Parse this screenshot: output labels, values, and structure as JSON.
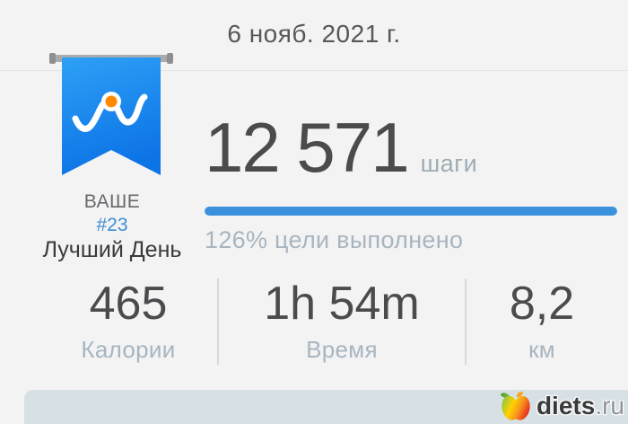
{
  "colors": {
    "bg": "#f3f3f4",
    "header-text": "#57575a",
    "divider": "#e3e3e5",
    "banner-top": "#2da0f6",
    "banner-bottom": "#0d74e6",
    "dot-orange": "#ff8a00",
    "rod-gray": "#ababad",
    "badge-your": "#68686c",
    "badge-rank-blue": "#3c8ed3",
    "badge-title": "#3a3a3d",
    "value-dark": "#4b4b4e",
    "label-muted": "#a8b5bf",
    "steps-unit": "#9fabb3",
    "progress-blue": "#3b91dc",
    "stat-divider": "#d9d9db",
    "card-bg": "#d6e0e5",
    "wm-dark": "#3a3a3a",
    "wm-gray": "#8f9296"
  },
  "header": {
    "date": "6 нояб. 2021 г."
  },
  "badge": {
    "line1": "ВАШЕ",
    "line2": "#23",
    "line3": "Лучший День"
  },
  "steps": {
    "value": "12 571",
    "unit": "шаги",
    "progress_text": "126% цели выполнено",
    "progress_percent": 126,
    "progress_fill_percent": 100
  },
  "stats": [
    {
      "value": "465",
      "label": "Калории"
    },
    {
      "value": "1h 54m",
      "label": "Время"
    },
    {
      "value": "8,2",
      "label": "км"
    }
  ],
  "watermark": {
    "site": "diets",
    "tld": ".ru"
  }
}
